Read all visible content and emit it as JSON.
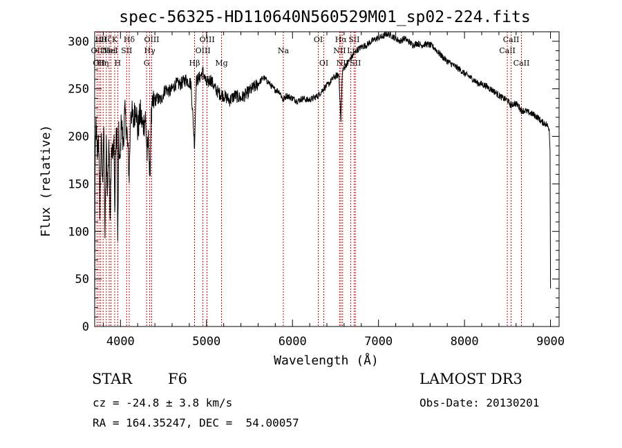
{
  "chart_data": {
    "type": "line",
    "title": "spec-56325-HD110640N560529M01_sp02-224.fits",
    "xlabel": "Wavelength (Å)",
    "ylabel": "Flux (relative)",
    "xlim": [
      3700,
      9100
    ],
    "ylim": [
      0,
      310
    ],
    "xticks": [
      4000,
      5000,
      6000,
      7000,
      8000,
      9000
    ],
    "yticks": [
      0,
      50,
      100,
      150,
      200,
      250,
      300
    ],
    "spectrum_anchors": [
      [
        3700,
        0
      ],
      [
        3705,
        160
      ],
      [
        3715,
        215
      ],
      [
        3730,
        175
      ],
      [
        3745,
        205
      ],
      [
        3760,
        125
      ],
      [
        3775,
        200
      ],
      [
        3790,
        150
      ],
      [
        3805,
        210
      ],
      [
        3820,
        95
      ],
      [
        3835,
        190
      ],
      [
        3850,
        140
      ],
      [
        3865,
        200
      ],
      [
        3880,
        120
      ],
      [
        3895,
        195
      ],
      [
        3910,
        175
      ],
      [
        3925,
        200
      ],
      [
        3933,
        115
      ],
      [
        3945,
        190
      ],
      [
        3960,
        205
      ],
      [
        3968,
        80
      ],
      [
        3980,
        200
      ],
      [
        3995,
        165
      ],
      [
        4010,
        220
      ],
      [
        4030,
        190
      ],
      [
        4050,
        225
      ],
      [
        4075,
        205
      ],
      [
        4101,
        160
      ],
      [
        4120,
        230
      ],
      [
        4150,
        215
      ],
      [
        4180,
        235
      ],
      [
        4200,
        205
      ],
      [
        4230,
        225
      ],
      [
        4260,
        210
      ],
      [
        4290,
        220
      ],
      [
        4310,
        180
      ],
      [
        4330,
        200
      ],
      [
        4340,
        145
      ],
      [
        4355,
        215
      ],
      [
        4380,
        235
      ],
      [
        4420,
        240
      ],
      [
        4470,
        238
      ],
      [
        4520,
        250
      ],
      [
        4580,
        247
      ],
      [
        4640,
        255
      ],
      [
        4700,
        255
      ],
      [
        4760,
        260
      ],
      [
        4820,
        255
      ],
      [
        4861,
        190
      ],
      [
        4880,
        258
      ],
      [
        4920,
        262
      ],
      [
        4960,
        268
      ],
      [
        5000,
        255
      ],
      [
        5050,
        260
      ],
      [
        5100,
        250
      ],
      [
        5150,
        245
      ],
      [
        5200,
        243
      ],
      [
        5270,
        238
      ],
      [
        5330,
        243
      ],
      [
        5400,
        240
      ],
      [
        5470,
        245
      ],
      [
        5530,
        250
      ],
      [
        5600,
        255
      ],
      [
        5660,
        262
      ],
      [
        5720,
        257
      ],
      [
        5780,
        250
      ],
      [
        5850,
        247
      ],
      [
        5890,
        238
      ],
      [
        5930,
        243
      ],
      [
        6000,
        240
      ],
      [
        6060,
        237
      ],
      [
        6120,
        240
      ],
      [
        6180,
        238
      ],
      [
        6240,
        240
      ],
      [
        6300,
        243
      ],
      [
        6360,
        250
      ],
      [
        6420,
        255
      ],
      [
        6480,
        262
      ],
      [
        6540,
        265
      ],
      [
        6563,
        215
      ],
      [
        6580,
        268
      ],
      [
        6620,
        275
      ],
      [
        6680,
        282
      ],
      [
        6740,
        290
      ],
      [
        6800,
        294
      ],
      [
        6860,
        296
      ],
      [
        6920,
        300
      ],
      [
        6980,
        303
      ],
      [
        7050,
        305
      ],
      [
        7100,
        308
      ],
      [
        7150,
        306
      ],
      [
        7200,
        303
      ],
      [
        7250,
        300
      ],
      [
        7300,
        303
      ],
      [
        7350,
        300
      ],
      [
        7400,
        296
      ],
      [
        7450,
        298
      ],
      [
        7500,
        296
      ],
      [
        7550,
        297
      ],
      [
        7600,
        296
      ],
      [
        7650,
        293
      ],
      [
        7700,
        288
      ],
      [
        7750,
        283
      ],
      [
        7800,
        279
      ],
      [
        7850,
        276
      ],
      [
        7900,
        273
      ],
      [
        7950,
        270
      ],
      [
        8000,
        266
      ],
      [
        8050,
        263
      ],
      [
        8100,
        260
      ],
      [
        8150,
        256
      ],
      [
        8200,
        255
      ],
      [
        8250,
        253
      ],
      [
        8300,
        250
      ],
      [
        8350,
        247
      ],
      [
        8400,
        243
      ],
      [
        8450,
        240
      ],
      [
        8500,
        238
      ],
      [
        8542,
        232
      ],
      [
        8580,
        235
      ],
      [
        8620,
        233
      ],
      [
        8662,
        227
      ],
      [
        8700,
        227
      ],
      [
        8750,
        225
      ],
      [
        8800,
        223
      ],
      [
        8850,
        220
      ],
      [
        8900,
        215
      ],
      [
        8950,
        213
      ],
      [
        8985,
        208
      ],
      [
        8995,
        185
      ]
    ],
    "emission_lines": [
      {
        "wave": 3727,
        "label": "OII",
        "row": 2
      },
      {
        "wave": 3750,
        "label": "OII",
        "row": 3
      },
      {
        "wave": 3770,
        "label": "Hθ",
        "row": 1
      },
      {
        "wave": 3798,
        "label": "Hη",
        "row": 3
      },
      {
        "wave": 3835,
        "label": "Hζ",
        "row": 1
      },
      {
        "wave": 3869,
        "label": "NeI",
        "row": 2
      },
      {
        "wave": 3889,
        "label": "HeI",
        "row": 2
      },
      {
        "wave": 3933,
        "label": "K",
        "row": 1
      },
      {
        "wave": 3968,
        "label": "H",
        "row": 3
      },
      {
        "wave": 4072,
        "label": "SII",
        "row": 2
      },
      {
        "wave": 4102,
        "label": "Hδ",
        "row": 1
      },
      {
        "wave": 4304,
        "label": "G",
        "row": 3
      },
      {
        "wave": 4340,
        "label": "Hγ",
        "row": 2
      },
      {
        "wave": 4363,
        "label": "OIII",
        "row": 1
      },
      {
        "wave": 4861,
        "label": "Hβ",
        "row": 3
      },
      {
        "wave": 4959,
        "label": "OIII",
        "row": 2
      },
      {
        "wave": 5007,
        "label": "OIII",
        "row": 1
      },
      {
        "wave": 5175,
        "label": "Mg",
        "row": 3
      },
      {
        "wave": 5893,
        "label": "Na",
        "row": 2
      },
      {
        "wave": 6300,
        "label": "OI",
        "row": 1
      },
      {
        "wave": 6364,
        "label": "OI",
        "row": 3
      },
      {
        "wave": 6548,
        "label": "NII",
        "row": 2
      },
      {
        "wave": 6563,
        "label": "Hα",
        "row": 1
      },
      {
        "wave": 6583,
        "label": "NII",
        "row": 3
      },
      {
        "wave": 6678,
        "label": "Li",
        "row": 2
      },
      {
        "wave": 6716,
        "label": "SII",
        "row": 1
      },
      {
        "wave": 6731,
        "label": "SII",
        "row": 3
      },
      {
        "wave": 8498,
        "label": "CaII",
        "row": 2
      },
      {
        "wave": 8542,
        "label": "CaII",
        "row": 1
      },
      {
        "wave": 8662,
        "label": "CaII",
        "row": 3
      }
    ]
  },
  "info": {
    "class": "STAR",
    "subclass": "F6",
    "survey": "LAMOST DR3",
    "redshift": "cz = -24.8 ± 3.8 km/s",
    "obs_date": "Obs-Date: 20130201",
    "coords": "RA = 164.35247, DEC =  54.00057"
  },
  "colors": {
    "line_marker": "#cc0000",
    "spectrum": "#000000",
    "axes": "#000000"
  }
}
